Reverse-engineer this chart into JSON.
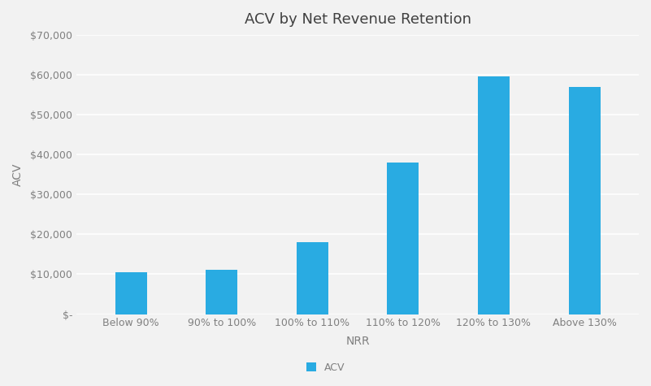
{
  "title": "ACV by Net Revenue Retention",
  "categories": [
    "Below 90%",
    "90% to 100%",
    "100% to 110%",
    "110% to 120%",
    "120% to 130%",
    "Above 130%"
  ],
  "values": [
    10500,
    11200,
    18000,
    38000,
    59500,
    57000
  ],
  "bar_color": "#29ABE2",
  "xlabel": "NRR",
  "ylabel": "ACV",
  "ylim": [
    0,
    70000
  ],
  "yticks": [
    0,
    10000,
    20000,
    30000,
    40000,
    50000,
    60000,
    70000
  ],
  "ytick_labels": [
    "$-",
    "$10,000",
    "$20,000",
    "$30,000",
    "$40,000",
    "$50,000",
    "$60,000",
    "$70,000"
  ],
  "legend_label": "ACV",
  "background_color": "#f2f2f2",
  "plot_bg_color": "#f2f2f2",
  "grid_color": "#ffffff",
  "text_color": "#808080",
  "title_fontsize": 13,
  "axis_label_fontsize": 10,
  "tick_fontsize": 9,
  "bar_width": 0.35
}
